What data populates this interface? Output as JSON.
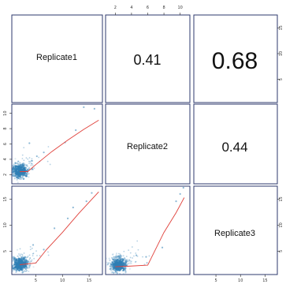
{
  "chart_data": {
    "type": "scatter-matrix",
    "variables": [
      "Replicate1",
      "Replicate2",
      "Replicate3"
    ],
    "correlations": [
      {
        "row": 0,
        "col": 1,
        "label": "0.41"
      },
      {
        "row": 0,
        "col": 2,
        "label": "0.68"
      },
      {
        "row": 1,
        "col": 2,
        "label": "0.44"
      }
    ],
    "axes": {
      "Replicate1": {
        "range": [
          0.5,
          17.5
        ],
        "ticks": [
          5,
          10,
          15
        ],
        "tick_labels": [
          "5",
          "10",
          "15"
        ]
      },
      "Replicate2": {
        "range": [
          0.8,
          11.2
        ],
        "ticks": [
          2,
          4,
          6,
          8,
          10
        ],
        "tick_labels": [
          "2",
          "4",
          "6",
          "8",
          "10"
        ]
      },
      "Replicate3": {
        "range": [
          0.5,
          17.5
        ],
        "ticks": [
          5,
          10,
          15
        ],
        "tick_labels": [
          "5",
          "10",
          "15"
        ]
      }
    },
    "scatter_panels": [
      {
        "row": 1,
        "col": 0,
        "x": "Replicate1",
        "y": "Replicate2",
        "density_center": [
          2.0,
          2.5
        ],
        "outliers": [
          [
            3.8,
            6.1
          ],
          [
            5.2,
            4.4
          ],
          [
            6.5,
            4.9
          ],
          [
            12.5,
            7.8
          ],
          [
            14.0,
            10.8
          ],
          [
            16.0,
            10.6
          ],
          [
            10.5,
            6.2
          ],
          [
            4.3,
            3.8
          ]
        ],
        "fit_line": [
          [
            2.0,
            2.4
          ],
          [
            3.5,
            2.4
          ],
          [
            5.0,
            3.3
          ],
          [
            8.0,
            5.0
          ],
          [
            11.0,
            6.5
          ],
          [
            14.0,
            7.9
          ],
          [
            16.8,
            9.1
          ]
        ]
      },
      {
        "row": 2,
        "col": 0,
        "x": "Replicate1",
        "y": "Replicate3",
        "density_center": [
          2.0,
          2.5
        ],
        "outliers": [
          [
            4.5,
            6.2
          ],
          [
            8.5,
            9.4
          ],
          [
            12.0,
            13.4
          ],
          [
            14.5,
            14.6
          ],
          [
            15.5,
            16.2
          ],
          [
            11.0,
            11.3
          ],
          [
            6.5,
            5.3
          ]
        ],
        "fit_line": [
          [
            2.0,
            2.4
          ],
          [
            5.0,
            2.7
          ],
          [
            7.0,
            5.3
          ],
          [
            10.0,
            8.6
          ],
          [
            13.0,
            12.2
          ],
          [
            16.8,
            16.4
          ]
        ]
      },
      {
        "row": 2,
        "col": 1,
        "x": "Replicate2",
        "y": "Replicate3",
        "density_center": [
          2.4,
          2.4
        ],
        "outliers": [
          [
            4.6,
            4.2
          ],
          [
            7.8,
            5.7
          ],
          [
            9.5,
            14.6
          ],
          [
            10.4,
            17.2
          ],
          [
            5.8,
            3.9
          ],
          [
            10.0,
            16.0
          ]
        ],
        "fit_line": [
          [
            2.0,
            2.0
          ],
          [
            3.5,
            2.1
          ],
          [
            6.0,
            2.3
          ],
          [
            8.0,
            8.6
          ],
          [
            9.5,
            12.4
          ],
          [
            10.5,
            15.3
          ]
        ]
      }
    ],
    "colors": {
      "points": "#2f7fb5",
      "fit": "#e0403a",
      "panel_border": "#2e3a6e"
    }
  }
}
